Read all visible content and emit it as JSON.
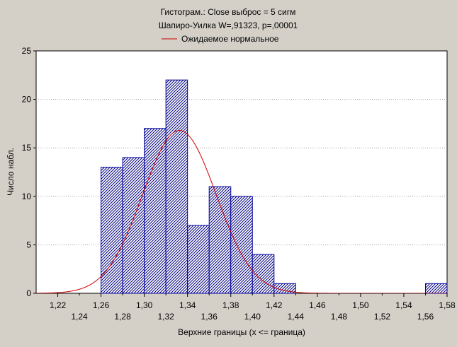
{
  "chart_data": {
    "type": "bar",
    "title": "Гистограм.: Close выброс = 5 сигм",
    "subtitle": "Шапиро-Уилка W=,91323, p=,00001",
    "legend": [
      {
        "label": "Ожидаемое нормальное",
        "color": "#cc0000"
      }
    ],
    "legend_placement": "top-center",
    "xlabel": "Верхние границы (x <= граница)",
    "ylabel": "Число набл.",
    "xlim": [
      1.2,
      1.58
    ],
    "ylim": [
      0,
      25
    ],
    "grid": {
      "horizontal": true,
      "style": "dotted"
    },
    "x_ticks_upper": [
      "1,22",
      "1,26",
      "1,30",
      "1,34",
      "1,38",
      "1,42",
      "1,46",
      "1,50",
      "1,54",
      "1,58"
    ],
    "x_ticks_lower": [
      "1,24",
      "1,28",
      "1,32",
      "1,36",
      "1,40",
      "1,44",
      "1,48",
      "1,52",
      "1,56"
    ],
    "y_ticks": [
      "0",
      "5",
      "10",
      "15",
      "20",
      "25"
    ],
    "bins": [
      {
        "lower": 1.26,
        "upper": 1.28,
        "count": 13
      },
      {
        "lower": 1.28,
        "upper": 1.3,
        "count": 14
      },
      {
        "lower": 1.3,
        "upper": 1.32,
        "count": 17
      },
      {
        "lower": 1.32,
        "upper": 1.34,
        "count": 22
      },
      {
        "lower": 1.34,
        "upper": 1.36,
        "count": 7
      },
      {
        "lower": 1.36,
        "upper": 1.38,
        "count": 11
      },
      {
        "lower": 1.38,
        "upper": 1.4,
        "count": 10
      },
      {
        "lower": 1.4,
        "upper": 1.42,
        "count": 4
      },
      {
        "lower": 1.42,
        "upper": 1.44,
        "count": 1
      },
      {
        "lower": 1.56,
        "upper": 1.58,
        "count": 1
      }
    ],
    "normal_curve": {
      "mean": 1.3325,
      "sd": 0.034,
      "peak": 16.8
    },
    "colors": {
      "bar_fill": "#ffffff",
      "bar_hatch": "#000080",
      "bar_border": "#0000a0",
      "curve": "#cc0000",
      "plot_bg": "#ffffff",
      "page_bg": "#d4d0c8",
      "grid": "#a0a0a0"
    }
  }
}
